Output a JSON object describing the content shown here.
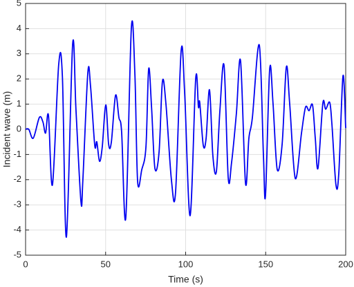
{
  "chart_data": {
    "type": "line",
    "xlabel": "Time (s)",
    "ylabel": "Incident wave (m)",
    "xlim": [
      0,
      200
    ],
    "ylim": [
      -5,
      5
    ],
    "xticks": [
      0,
      50,
      100,
      150,
      200
    ],
    "yticks": [
      -5,
      -4,
      -3,
      -2,
      -1,
      0,
      1,
      2,
      3,
      4,
      5
    ],
    "grid": true,
    "x": [
      0,
      2,
      4.8,
      8.6,
      10.8,
      12.5,
      14.3,
      16.8,
      20.7,
      23,
      25.5,
      29.4,
      31.5,
      34.6,
      35.8,
      38.9,
      40.6,
      43.2,
      44.5,
      46.2,
      47.9,
      50.1,
      51.9,
      53.6,
      56.2,
      58.3,
      60,
      62.6,
      66.1,
      68.3,
      70,
      72.6,
      75.2,
      76.9,
      78.7,
      80.8,
      83.4,
      85.5,
      87.7,
      91.1,
      93.7,
      97.2,
      99.4,
      102.8,
      106.3,
      108,
      108.8,
      111,
      112.8,
      114.9,
      117,
      119.2,
      121.4,
      124,
      126.6,
      128.7,
      131.7,
      134.3,
      137.4,
      139.5,
      141.7,
      146,
      148.6,
      149.9,
      152.5,
      154.6,
      157.2,
      160.3,
      162.9,
      165,
      168.5,
      172.4,
      174.9,
      177.1,
      179.3,
      181,
      182.7,
      185.7,
      187.5,
      190,
      191.4,
      193.9,
      195.7,
      198.3,
      200
    ],
    "series": [
      {
        "color": "#0000f0",
        "values": [
          0,
          0,
          -0.35,
          0.47,
          0.3,
          -0.15,
          0.55,
          -2.2,
          2.58,
          2.1,
          -4.28,
          3.38,
          0.75,
          -2.88,
          -2.0,
          2.25,
          1.7,
          -0.63,
          -0.5,
          -1.27,
          -0.7,
          0.97,
          -0.6,
          -0.5,
          1.35,
          0.47,
          -0.1,
          -3.52,
          4.04,
          2.17,
          -2.07,
          -1.6,
          -0.7,
          2.4,
          0.88,
          -1.55,
          -0.9,
          1.9,
          1.0,
          -2.0,
          -2.5,
          3.13,
          1.43,
          -3.43,
          2.03,
          0.88,
          1.07,
          -0.63,
          -0.35,
          1.57,
          -1.04,
          -1.68,
          0.74,
          2.53,
          -1.92,
          -1.32,
          0.63,
          2.72,
          -2.14,
          -0.36,
          0.47,
          3.35,
          -1.04,
          -2.61,
          2.39,
          1.02,
          -1.59,
          -0.58,
          2.47,
          1.02,
          -1.95,
          -0.14,
          0.88,
          0.74,
          0.96,
          -0.36,
          -1.54,
          1.02,
          0.8,
          1.07,
          0.19,
          -2.2,
          -1.73,
          2.12,
          0.05
        ]
      }
    ]
  }
}
